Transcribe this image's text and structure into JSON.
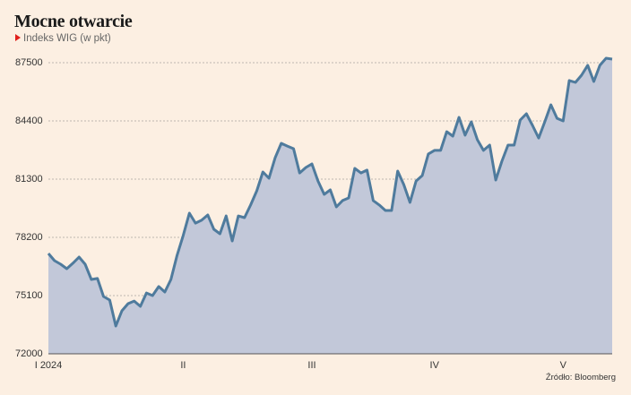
{
  "chart_data": {
    "type": "area",
    "title": "Mocne otwarcie",
    "subtitle": "Indeks WIG (w pkt)",
    "source": "Źródło: Bloomberg",
    "color": "#4f7b9d",
    "fill_color": "#c2c8d9",
    "grid": true,
    "ylim": [
      72000,
      87500
    ],
    "yticks": [
      72000,
      75100,
      78200,
      81300,
      84400,
      87500
    ],
    "categories": [
      "I 2024",
      null,
      null,
      null,
      null,
      null,
      null,
      null,
      null,
      null,
      null,
      null,
      null,
      null,
      null,
      null,
      null,
      null,
      null,
      null,
      null,
      null,
      "II",
      null,
      null,
      null,
      null,
      null,
      null,
      null,
      null,
      null,
      null,
      null,
      null,
      null,
      null,
      null,
      null,
      null,
      null,
      null,
      null,
      "III",
      null,
      null,
      null,
      null,
      null,
      null,
      null,
      null,
      null,
      null,
      null,
      null,
      null,
      null,
      null,
      null,
      null,
      null,
      null,
      "IV",
      null,
      null,
      null,
      null,
      null,
      null,
      null,
      null,
      null,
      null,
      null,
      null,
      null,
      null,
      null,
      null,
      null,
      null,
      null,
      null,
      "V",
      null,
      null,
      null,
      null,
      null,
      null,
      null,
      null
    ],
    "values": [
      77340,
      76960,
      76770,
      76530,
      76820,
      77150,
      76770,
      75960,
      76010,
      75050,
      74860,
      73480,
      74290,
      74670,
      74810,
      74530,
      75240,
      75100,
      75580,
      75290,
      75960,
      77250,
      78300,
      79490,
      78960,
      79110,
      79390,
      78630,
      78390,
      79340,
      78010,
      79340,
      79250,
      79920,
      80680,
      81680,
      81350,
      82440,
      83210,
      83060,
      82920,
      81630,
      81920,
      82110,
      81200,
      80490,
      80730,
      79820,
      80160,
      80300,
      81870,
      81630,
      81780,
      80160,
      79920,
      79630,
      79630,
      81730,
      81010,
      80060,
      81200,
      81490,
      82640,
      82830,
      82830,
      83830,
      83590,
      84590,
      83640,
      84350,
      83400,
      82830,
      83110,
      81250,
      82250,
      83110,
      83110,
      84450,
      84780,
      84160,
      83490,
      84350,
      85260,
      84540,
      84400,
      86550,
      86450,
      86830,
      87360,
      86500,
      87360,
      87740,
      87690
    ]
  }
}
